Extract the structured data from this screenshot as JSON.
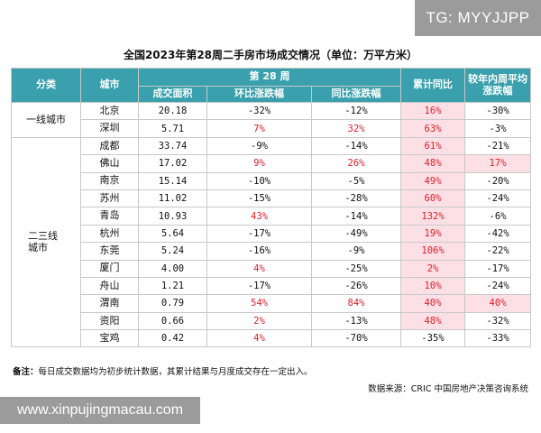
{
  "badge": "TG: MYYJJPP",
  "title": "全国2023年第28周二手房市场成交情况（单位：万平方米）",
  "headers": {
    "category": "分类",
    "city": "城市",
    "week_group": "第 28 周",
    "area": "成交面积",
    "wow": "环比涨跌幅",
    "yoy": "同比涨跌幅",
    "cumulative": "累计同比",
    "vs_avg": "较年内周平均涨跌幅"
  },
  "categories": {
    "tier1": "一线城市",
    "tier23": "二三线城市"
  },
  "rows": [
    {
      "city": "北京",
      "area": "20.18",
      "wow": "-32%",
      "yoy": "-12%",
      "cum": "16%",
      "avg": "-30%"
    },
    {
      "city": "深圳",
      "area": "5.71",
      "wow": "7%",
      "yoy": "32%",
      "cum": "63%",
      "avg": "-3%"
    },
    {
      "city": "成都",
      "area": "33.74",
      "wow": "-9%",
      "yoy": "-14%",
      "cum": "61%",
      "avg": "-21%"
    },
    {
      "city": "佛山",
      "area": "17.02",
      "wow": "9%",
      "yoy": "26%",
      "cum": "48%",
      "avg": "17%"
    },
    {
      "city": "南京",
      "area": "15.14",
      "wow": "-10%",
      "yoy": "-5%",
      "cum": "49%",
      "avg": "-20%"
    },
    {
      "city": "苏州",
      "area": "11.02",
      "wow": "-15%",
      "yoy": "-28%",
      "cum": "60%",
      "avg": "-24%"
    },
    {
      "city": "青岛",
      "area": "10.93",
      "wow": "43%",
      "yoy": "-14%",
      "cum": "132%",
      "avg": "-6%"
    },
    {
      "city": "杭州",
      "area": "5.64",
      "wow": "-17%",
      "yoy": "-49%",
      "cum": "19%",
      "avg": "-42%"
    },
    {
      "city": "东莞",
      "area": "5.24",
      "wow": "-16%",
      "yoy": "-9%",
      "cum": "106%",
      "avg": "-22%"
    },
    {
      "city": "厦门",
      "area": "4.00",
      "wow": "4%",
      "yoy": "-25%",
      "cum": "2%",
      "avg": "-17%"
    },
    {
      "city": "舟山",
      "area": "1.21",
      "wow": "-17%",
      "yoy": "-26%",
      "cum": "10%",
      "avg": "-24%"
    },
    {
      "city": "渭南",
      "area": "0.79",
      "wow": "54%",
      "yoy": "84%",
      "cum": "40%",
      "avg": "40%"
    },
    {
      "city": "资阳",
      "area": "0.66",
      "wow": "2%",
      "yoy": "-13%",
      "cum": "48%",
      "avg": "-32%"
    },
    {
      "city": "宝鸡",
      "area": "0.42",
      "wow": "4%",
      "yoy": "-70%",
      "cum": "-35%",
      "avg": "-33%"
    }
  ],
  "note_label": "备注：",
  "note_text": "每日成交数据均为初步统计数据，其累计结果与月度成交存在一定出入。",
  "source": "数据来源：CRIC 中国房地产决策咨询系统",
  "watermark": "www.xinpujingmacau.com",
  "colors": {
    "header_bg": "#3aa0ad",
    "positive_text": "#e0202a",
    "positive_cell_bg": "#fde0e6",
    "badge_bg": "#9b9b9b"
  }
}
